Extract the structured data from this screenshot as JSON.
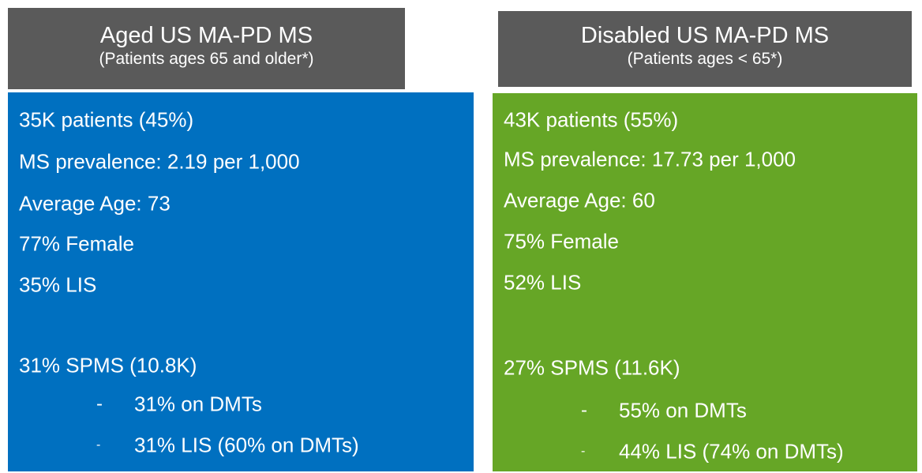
{
  "panels": [
    {
      "title": "Aged US MA-PD MS",
      "subtitle": "(Patients ages 65 and older*)",
      "lines": [
        "35K patients (45%)",
        "MS prevalence: 2.19 per 1,000",
        "Average Age: 73",
        "77% Female",
        "35% LIS"
      ],
      "spms": "31% SPMS (10.8K)",
      "bullets": [
        {
          "marker": "-",
          "text": "31% on DMTs"
        },
        {
          "marker": "-",
          "text": "31% LIS (60% on DMTs)"
        }
      ]
    },
    {
      "title": "Disabled US MA-PD MS",
      "subtitle": "(Patients ages < 65*)",
      "lines": [
        "43K patients (55%)",
        "MS prevalence: 17.73 per 1,000",
        "Average Age: 60",
        "75% Female",
        "52% LIS"
      ],
      "spms": "27% SPMS (11.6K)",
      "bullets": [
        {
          "marker": "-",
          "text": "55% on DMTs"
        },
        {
          "marker": "-",
          "text": "44% LIS (74% on DMTs)"
        }
      ]
    }
  ]
}
